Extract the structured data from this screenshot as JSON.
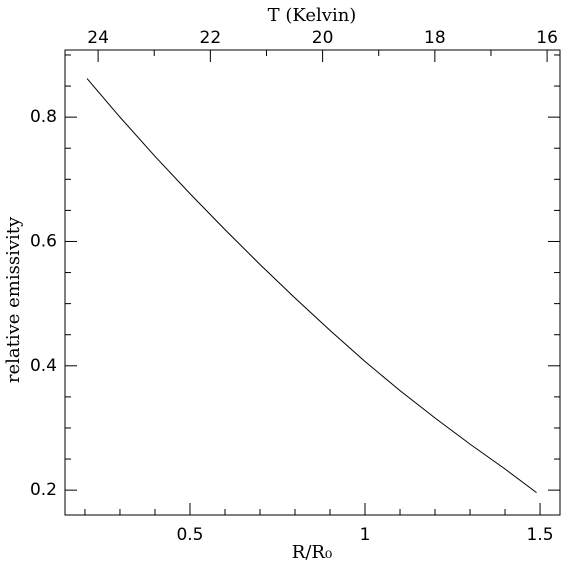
{
  "chart_data": {
    "type": "line",
    "x_label": "R/R₀",
    "y_label": "relative emissivity",
    "x2_label": "T (Kelvin)",
    "x": [
      0.206,
      0.3,
      0.4,
      0.5,
      0.6,
      0.7,
      0.8,
      0.9,
      1.0,
      1.1,
      1.2,
      1.3,
      1.4,
      1.49
    ],
    "series": [
      {
        "color": "#000000",
        "values": [
          0.862,
          0.8,
          0.737,
          0.677,
          0.619,
          0.563,
          0.509,
          0.457,
          0.407,
          0.36,
          0.316,
          0.274,
          0.234,
          0.196
        ]
      }
    ],
    "xlim": [
      0.143,
      1.557
    ],
    "xticks": [
      0.5,
      1,
      1.5
    ],
    "xticks_minor": [
      0.2,
      0.3,
      0.4,
      0.6,
      0.7,
      0.8,
      0.9,
      1.1,
      1.2,
      1.3,
      1.4
    ],
    "ylim": [
      0.16,
      0.908
    ],
    "yticks": [
      0.2,
      0.4,
      0.6,
      0.8
    ],
    "yticks_minor": [
      0.25,
      0.3,
      0.35,
      0.45,
      0.5,
      0.55,
      0.65,
      0.7,
      0.75,
      0.85,
      0.9
    ],
    "x2lim": [
      24.59,
      15.77
    ],
    "x2ticks": [
      24,
      22,
      20,
      18,
      16
    ],
    "x2ticks_minor": [
      23,
      21,
      19,
      17
    ],
    "grid": false
  }
}
